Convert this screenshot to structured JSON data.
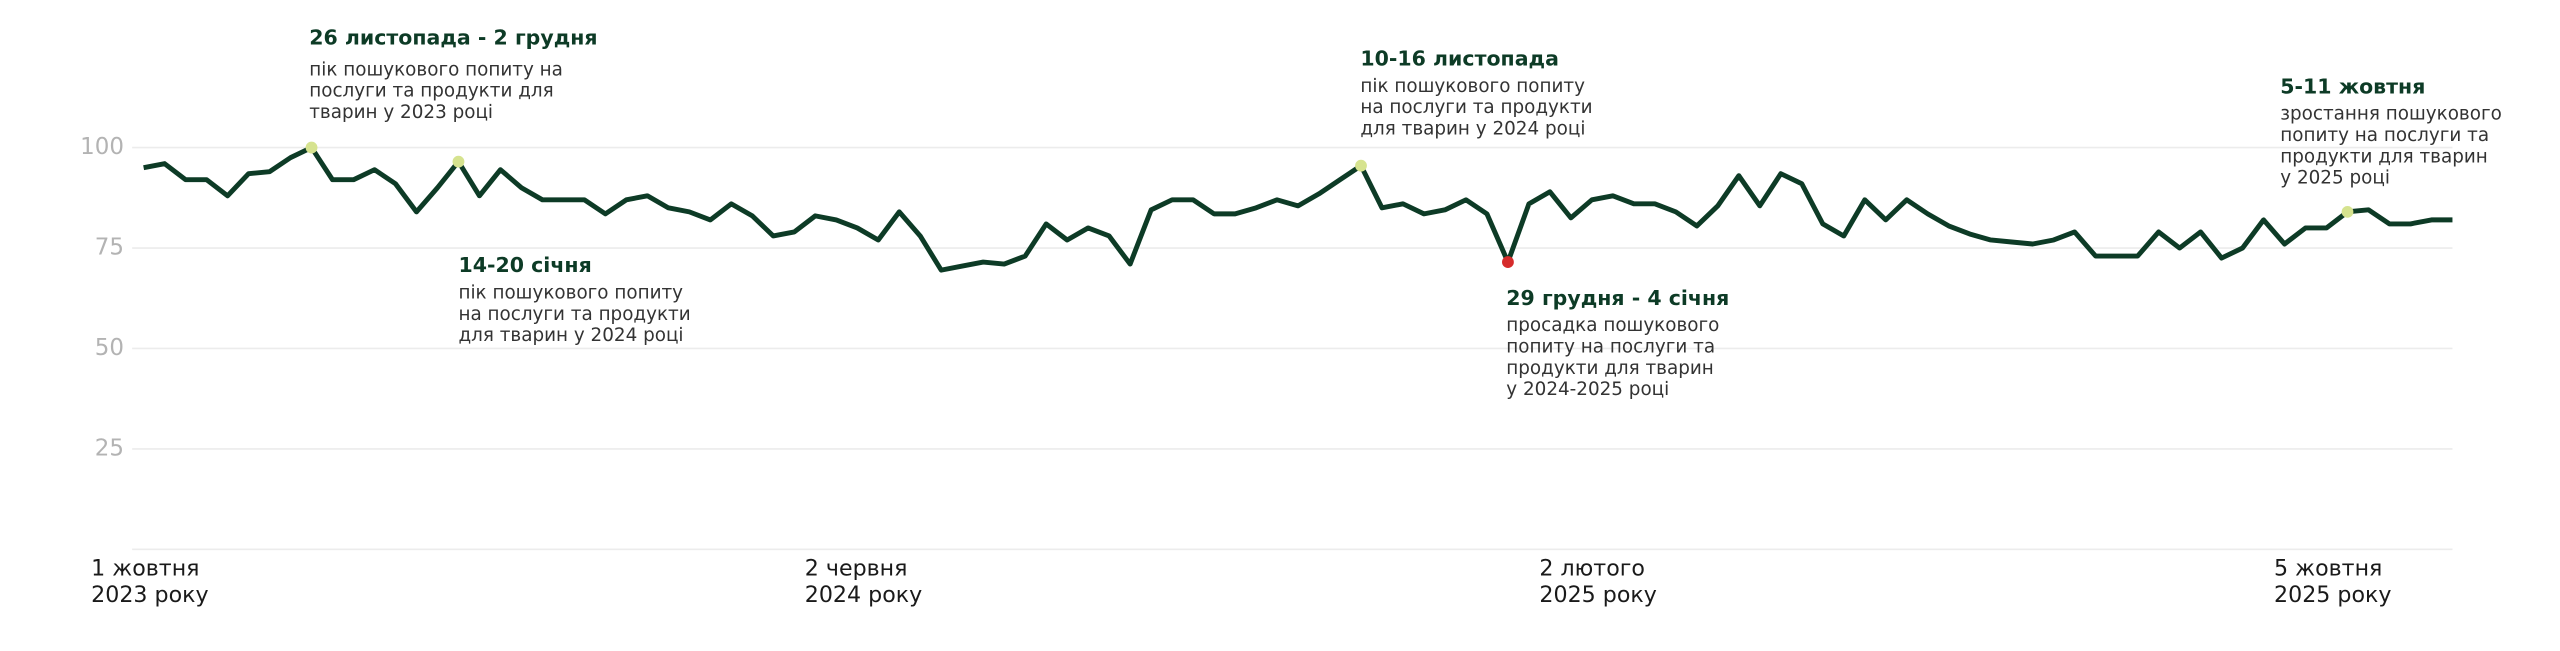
{
  "chart_data": {
    "type": "line",
    "color": "#0d3b26",
    "ylim": [
      0,
      100
    ],
    "yticks": [
      25,
      50,
      75,
      100
    ],
    "grid": true,
    "categories": [
      "1 жовтня\n2023 року",
      null,
      null,
      null,
      null,
      null,
      null,
      null,
      null,
      null,
      null,
      null,
      null,
      null,
      null,
      null,
      null,
      null,
      null,
      null,
      null,
      null,
      null,
      null,
      null,
      null,
      null,
      null,
      null,
      null,
      null,
      null,
      null,
      null,
      "2 червня\n2024 року",
      null,
      null,
      null,
      null,
      null,
      null,
      null,
      null,
      null,
      null,
      null,
      null,
      null,
      null,
      null,
      null,
      null,
      null,
      null,
      null,
      null,
      null,
      null,
      null,
      null,
      null,
      null,
      null,
      null,
      null,
      null,
      null,
      null,
      null,
      "2 лютого\n2025 року",
      null,
      null,
      null,
      null,
      null,
      null,
      null,
      null,
      null,
      null,
      null,
      null,
      null,
      null,
      null,
      null,
      null,
      null,
      null,
      null,
      null,
      null,
      null,
      null,
      null,
      null,
      null,
      null,
      null,
      null,
      null,
      null,
      null,
      null,
      "5 жовтня\n2025 року",
      null,
      null,
      null,
      null,
      null,
      null
    ],
    "values": [
      95,
      96,
      92,
      92,
      88,
      93.5,
      94,
      97.5,
      100,
      92,
      92,
      94.5,
      91,
      84,
      90,
      96.5,
      88,
      94.5,
      90,
      87,
      87,
      87,
      83.5,
      87,
      88,
      85,
      84,
      82,
      86,
      83,
      78,
      79,
      83,
      82,
      80,
      77,
      84,
      78,
      69.5,
      70.5,
      71.5,
      71,
      73,
      81,
      77,
      80,
      78,
      71,
      84.5,
      87,
      87,
      83.5,
      83.5,
      85,
      87,
      85.5,
      88.5,
      92,
      95.5,
      85,
      86,
      83.5,
      84.5,
      87,
      83.5,
      71.5,
      86,
      89,
      82.5,
      87,
      88,
      86,
      86,
      84,
      80.5,
      85.5,
      93,
      85.5,
      93.5,
      91,
      81,
      78,
      87,
      82,
      87,
      83.5,
      80.5,
      78.5,
      77,
      76.5,
      76,
      77,
      79,
      73,
      73,
      73,
      79,
      75,
      79,
      72.5,
      75,
      82,
      76,
      80,
      80,
      84,
      84.5,
      81,
      81,
      82,
      82
    ],
    "highlights": [
      {
        "index": 8,
        "color": "#d6e38f",
        "title": "26 листопада - 2 грудня",
        "text": "пік пошукового попиту на\nпослуги та продукти для\nтварин у 2023 році"
      },
      {
        "index": 15,
        "color": "#d6e38f",
        "title": "14-20 січня",
        "text": "пік пошукового попиту\nна послуги та продукти\nдля тварин у 2024 році"
      },
      {
        "index": 58,
        "color": "#d6e38f",
        "title": "10-16 листопада",
        "text": "пік пошукового попиту\nна послуги та продукти\nдля тварин у 2024 році"
      },
      {
        "index": 65,
        "color": "#d62b2b",
        "title": "29 грудня - 4 січня",
        "text": "просадка пошукового\nпопиту на послуги та\nпродукти для тварин\nу 2024-2025 році"
      },
      {
        "index": 105,
        "color": "#d6e38f",
        "title": "5-11 жовтня",
        "text": "зростання пошукового\nпопиту на послуги та\nпродукти для тварин\nу 2025 році"
      }
    ]
  }
}
